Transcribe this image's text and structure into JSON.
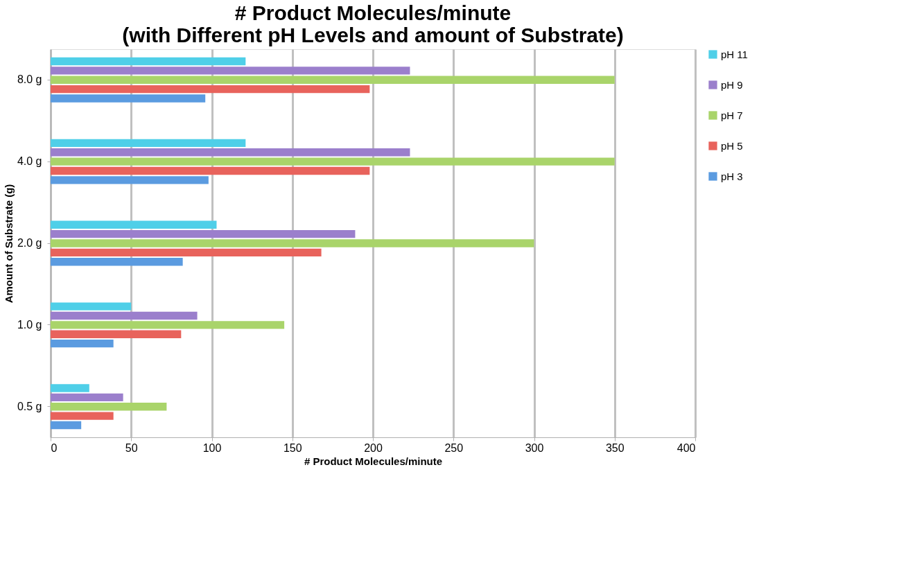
{
  "chart_data": {
    "type": "bar",
    "orientation": "horizontal",
    "title": [
      "# Product Molecules/minute",
      "(with Different pH Levels and amount of Substrate)"
    ],
    "xlabel": "# Product Molecules/minute",
    "ylabel": "Amount of Substrate (g)",
    "categories": [
      "8.0 g",
      "4.0 g",
      "2.0 g",
      "1.0 g",
      "0.5 g"
    ],
    "series": [
      {
        "name": "pH 11",
        "color": "#4fcfe8",
        "values": [
          121,
          121,
          103,
          50,
          24
        ]
      },
      {
        "name": "pH 9",
        "color": "#9b7fcc",
        "values": [
          223,
          223,
          189,
          91,
          45
        ]
      },
      {
        "name": "pH 7",
        "color": "#a9d46a",
        "values": [
          350,
          350,
          300,
          145,
          72
        ]
      },
      {
        "name": "pH 5",
        "color": "#e8635c",
        "values": [
          198,
          198,
          168,
          81,
          39
        ]
      },
      {
        "name": "pH 3",
        "color": "#5b9be0",
        "values": [
          96,
          98,
          82,
          39,
          19
        ]
      }
    ],
    "xlim": [
      0,
      400
    ],
    "xticks": [
      0,
      50,
      100,
      150,
      200,
      250,
      300,
      350,
      400
    ],
    "grid": "x",
    "legend": "right"
  }
}
